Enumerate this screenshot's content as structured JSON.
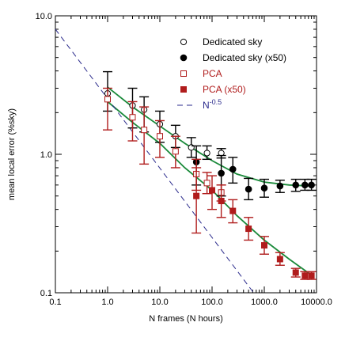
{
  "chart_data": {
    "type": "scatter",
    "xscale": "log",
    "yscale": "log",
    "xlim": [
      0.1,
      10000
    ],
    "ylim": [
      0.1,
      10
    ],
    "xlabel": "N frames (N hours)",
    "ylabel": "mean local error (%sky)",
    "x_ticks": [
      {
        "value": 0.1,
        "label": "0.1"
      },
      {
        "value": 1,
        "label": "1.0"
      },
      {
        "value": 10,
        "label": "10.0"
      },
      {
        "value": 100,
        "label": "100.0"
      },
      {
        "value": 1000,
        "label": "1000.0"
      },
      {
        "value": 10000,
        "label": "10000.0"
      }
    ],
    "y_ticks": [
      {
        "value": 0.1,
        "label": "0.1"
      },
      {
        "value": 1,
        "label": "1.0"
      },
      {
        "value": 10,
        "label": "10.0"
      }
    ],
    "legend_position": "top-right",
    "series": [
      {
        "name": "Dedicated sky",
        "marker": "open-circle",
        "color": "#000000",
        "points": [
          {
            "x": 1,
            "y": 2.75,
            "lo": 2.05,
            "hi": 3.95
          },
          {
            "x": 3,
            "y": 2.25,
            "lo": 1.55,
            "hi": 3.0
          },
          {
            "x": 5,
            "y": 2.1,
            "lo": 1.45,
            "hi": 2.6
          },
          {
            "x": 10,
            "y": 1.65,
            "lo": 1.22,
            "hi": 2.05
          },
          {
            "x": 20,
            "y": 1.35,
            "lo": 1.12,
            "hi": 1.62
          },
          {
            "x": 40,
            "y": 1.12,
            "lo": 0.95,
            "hi": 1.32
          },
          {
            "x": 80,
            "y": 1.02,
            "lo": 0.92,
            "hi": 1.15
          },
          {
            "x": 150,
            "y": 1.02,
            "lo": 0.94,
            "hi": 1.1
          }
        ]
      },
      {
        "name": "Dedicated sky (x50)",
        "marker": "filled-circle",
        "color": "#000000",
        "points": [
          {
            "x": 50,
            "y": 0.88,
            "lo": 0.6,
            "hi": 1.15
          },
          {
            "x": 150,
            "y": 0.73,
            "lo": 0.5,
            "hi": 0.98
          },
          {
            "x": 250,
            "y": 0.78,
            "lo": 0.62,
            "hi": 0.95
          },
          {
            "x": 500,
            "y": 0.56,
            "lo": 0.47,
            "hi": 0.67
          },
          {
            "x": 1000,
            "y": 0.57,
            "lo": 0.49,
            "hi": 0.66
          },
          {
            "x": 2000,
            "y": 0.59,
            "lo": 0.53,
            "hi": 0.65
          },
          {
            "x": 4000,
            "y": 0.6,
            "lo": 0.54,
            "hi": 0.66
          },
          {
            "x": 6000,
            "y": 0.6,
            "lo": 0.55,
            "hi": 0.66
          },
          {
            "x": 8000,
            "y": 0.6,
            "lo": 0.55,
            "hi": 0.66
          }
        ]
      },
      {
        "name": "PCA",
        "marker": "open-square",
        "color": "#b01c1c",
        "points": [
          {
            "x": 1,
            "y": 2.5,
            "lo": 1.5,
            "hi": 3.0
          },
          {
            "x": 3,
            "y": 1.85,
            "lo": 1.25,
            "hi": 2.4
          },
          {
            "x": 5,
            "y": 1.5,
            "lo": 0.85,
            "hi": 2.2
          },
          {
            "x": 10,
            "y": 1.35,
            "lo": 0.95,
            "hi": 1.75
          },
          {
            "x": 20,
            "y": 1.05,
            "lo": 0.8,
            "hi": 1.35
          },
          {
            "x": 50,
            "y": 0.72,
            "lo": 0.55,
            "hi": 0.92
          },
          {
            "x": 80,
            "y": 0.62,
            "lo": 0.52,
            "hi": 0.74
          },
          {
            "x": 150,
            "y": 0.53,
            "lo": 0.46,
            "hi": 0.6
          }
        ]
      },
      {
        "name": "PCA (x50)",
        "marker": "filled-square",
        "color": "#b01c1c",
        "points": [
          {
            "x": 50,
            "y": 0.5,
            "lo": 0.27,
            "hi": 0.8
          },
          {
            "x": 100,
            "y": 0.55,
            "lo": 0.4,
            "hi": 0.7
          },
          {
            "x": 150,
            "y": 0.46,
            "lo": 0.35,
            "hi": 0.6
          },
          {
            "x": 250,
            "y": 0.39,
            "lo": 0.32,
            "hi": 0.47
          },
          {
            "x": 500,
            "y": 0.29,
            "lo": 0.24,
            "hi": 0.35
          },
          {
            "x": 1000,
            "y": 0.22,
            "lo": 0.19,
            "hi": 0.255
          },
          {
            "x": 2000,
            "y": 0.175,
            "lo": 0.158,
            "hi": 0.195
          },
          {
            "x": 4000,
            "y": 0.14,
            "lo": 0.13,
            "hi": 0.15
          },
          {
            "x": 6000,
            "y": 0.133,
            "lo": 0.125,
            "hi": 0.142
          },
          {
            "x": 8000,
            "y": 0.133,
            "lo": 0.125,
            "hi": 0.142
          }
        ]
      }
    ],
    "reference_line": {
      "label_base": "N",
      "label_exponent": "-0.5",
      "color": "#2b2b8c",
      "style": "dashed",
      "points": [
        [
          0.1,
          8.0
        ],
        [
          625,
          0.1
        ]
      ]
    },
    "fit_lines": [
      {
        "color": "#1a8a3a",
        "points": [
          [
            1,
            3.05
          ],
          [
            3,
            2.2
          ],
          [
            10,
            1.6
          ],
          [
            30,
            1.2
          ],
          [
            100,
            0.9
          ],
          [
            300,
            0.72
          ],
          [
            1000,
            0.63
          ],
          [
            3000,
            0.6
          ],
          [
            8000,
            0.59
          ]
        ]
      },
      {
        "color": "#1a8a3a",
        "points": [
          [
            1,
            2.4
          ],
          [
            3,
            1.7
          ],
          [
            10,
            1.2
          ],
          [
            30,
            0.8
          ],
          [
            100,
            0.55
          ],
          [
            300,
            0.36
          ],
          [
            1000,
            0.24
          ],
          [
            3000,
            0.175
          ],
          [
            9000,
            0.13
          ]
        ]
      }
    ]
  }
}
